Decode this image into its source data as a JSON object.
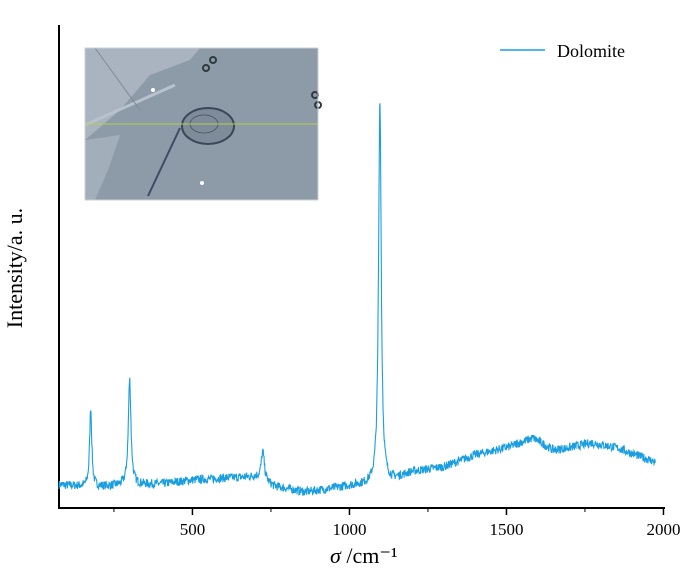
{
  "chart_data": {
    "type": "line",
    "title": "",
    "xlabel_symbol": "σ",
    "xlabel_unit": " /cm⁻¹",
    "ylabel": "Intensity/a. u.",
    "xlim": [
      75,
      2000
    ],
    "ylim": [
      0,
      100
    ],
    "xticks": [
      500,
      1000,
      1500,
      2000
    ],
    "xtick_labels": [
      "500",
      "1000",
      "1500",
      "2000"
    ],
    "x_minor_ticks": [
      250,
      750,
      1250,
      1750
    ],
    "grid": false,
    "legend": {
      "position": "top-right",
      "entries": [
        "Dolomite"
      ]
    },
    "series": [
      {
        "name": "Dolomite",
        "color": "#1a9ee0",
        "x_range": [
          75,
          1975
        ],
        "baseline": [
          [
            75,
            4.8
          ],
          [
            150,
            4.5
          ],
          [
            200,
            4.4
          ],
          [
            300,
            4.8
          ],
          [
            400,
            5.0
          ],
          [
            500,
            5.8
          ],
          [
            600,
            6.2
          ],
          [
            700,
            6.5
          ],
          [
            760,
            4.5
          ],
          [
            860,
            3.3
          ],
          [
            1000,
            4.6
          ],
          [
            1080,
            5.0
          ],
          [
            1130,
            5.5
          ],
          [
            1200,
            7.5
          ],
          [
            1300,
            8.5
          ],
          [
            1400,
            11
          ],
          [
            1500,
            12.5
          ],
          [
            1585,
            14.5
          ],
          [
            1650,
            12
          ],
          [
            1700,
            12.5
          ],
          [
            1770,
            13.5
          ],
          [
            1850,
            12.5
          ],
          [
            1975,
            9.5
          ]
        ],
        "peaks": [
          {
            "center": 176,
            "height": 16.5,
            "hwhm": 4
          },
          {
            "center": 300,
            "height": 22,
            "hwhm": 5
          },
          {
            "center": 724,
            "height": 6,
            "hwhm": 6
          },
          {
            "center": 1097,
            "height": 80,
            "hwhm": 5
          }
        ],
        "noise": 0.9
      }
    ],
    "inset": "microscope image of sample with horizontal scan line"
  }
}
